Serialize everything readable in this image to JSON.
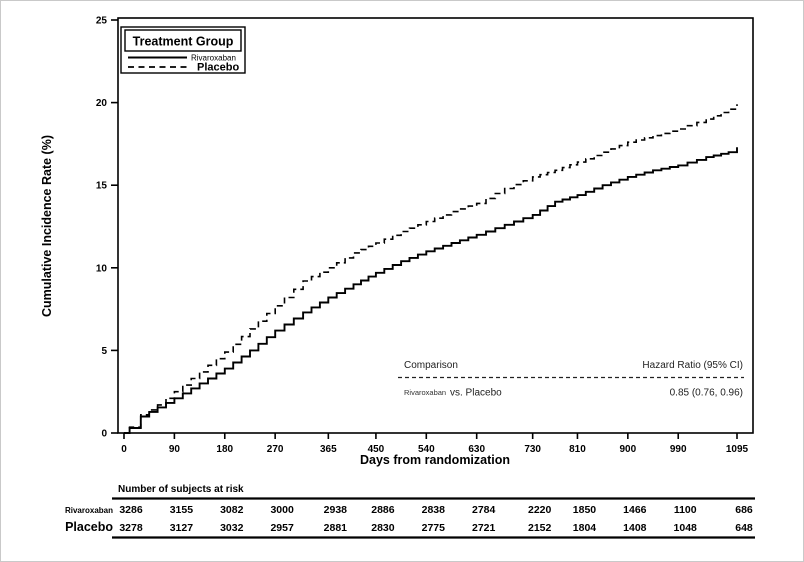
{
  "colors": {
    "curve": "#000000",
    "background": "#ffffff",
    "text": "#000000"
  },
  "legend": {
    "title": "Treatment Group",
    "items": [
      {
        "label": "Rivaroxaban",
        "style": "solid"
      },
      {
        "label": "Placebo",
        "style": "dashed"
      }
    ]
  },
  "comparison": {
    "header_left": "Comparison",
    "header_right": "Hazard Ratio (95% CI)",
    "row_group": "Rivaroxaban",
    "row_vs": "vs. Placebo",
    "row_value": "0.85 (0.76, 0.96)"
  },
  "risk_table": {
    "title": "Number of subjects at risk",
    "rows": [
      {
        "label": "Rivaroxaban",
        "values": [
          3286,
          3155,
          3082,
          3000,
          2938,
          2886,
          2838,
          2784,
          2220,
          1850,
          1466,
          1100,
          686
        ]
      },
      {
        "label": "Placebo",
        "values": [
          3278,
          3127,
          3032,
          2957,
          2881,
          2830,
          2775,
          2721,
          2152,
          1804,
          1408,
          1048,
          648
        ]
      }
    ]
  },
  "chart_data": {
    "type": "line",
    "title": "",
    "xlabel": "Days from randomization",
    "ylabel": "Cumulative Incidence Rate (%)",
    "xlim": [
      0,
      1125
    ],
    "ylim": [
      0,
      25
    ],
    "x_ticks": [
      0,
      90,
      180,
      270,
      365,
      450,
      540,
      630,
      730,
      810,
      900,
      990,
      1095
    ],
    "y_ticks": [
      0,
      5,
      10,
      15,
      20,
      25
    ],
    "grid": false,
    "legend_position": "top-left",
    "step_curves": true,
    "series": [
      {
        "name": "Rivaroxaban",
        "style": "solid",
        "x": [
          0,
          10,
          30,
          60,
          90,
          120,
          150,
          180,
          225,
          270,
          320,
          365,
          410,
          450,
          495,
          540,
          585,
          630,
          680,
          730,
          770,
          810,
          855,
          900,
          945,
          990,
          1040,
          1080,
          1095
        ],
        "y": [
          0,
          0.3,
          1.0,
          1.55,
          2.1,
          2.7,
          3.3,
          3.9,
          5.0,
          6.2,
          7.3,
          8.2,
          9.0,
          9.7,
          10.4,
          11.0,
          11.5,
          12.0,
          12.6,
          13.2,
          14.0,
          14.4,
          15.0,
          15.5,
          15.9,
          16.2,
          16.7,
          17.0,
          17.3
        ]
      },
      {
        "name": "Placebo",
        "style": "dashed",
        "x": [
          0,
          10,
          30,
          60,
          90,
          120,
          150,
          180,
          225,
          270,
          320,
          365,
          410,
          450,
          495,
          540,
          585,
          630,
          680,
          730,
          770,
          810,
          855,
          900,
          945,
          990,
          1040,
          1080,
          1095
        ],
        "y": [
          0,
          0.35,
          1.1,
          1.7,
          2.5,
          3.3,
          4.1,
          4.9,
          6.3,
          7.7,
          9.2,
          10.0,
          10.9,
          11.5,
          12.2,
          12.8,
          13.4,
          13.9,
          14.8,
          15.5,
          15.9,
          16.4,
          17.0,
          17.6,
          18.0,
          18.4,
          19.0,
          19.6,
          19.9
        ]
      }
    ]
  }
}
